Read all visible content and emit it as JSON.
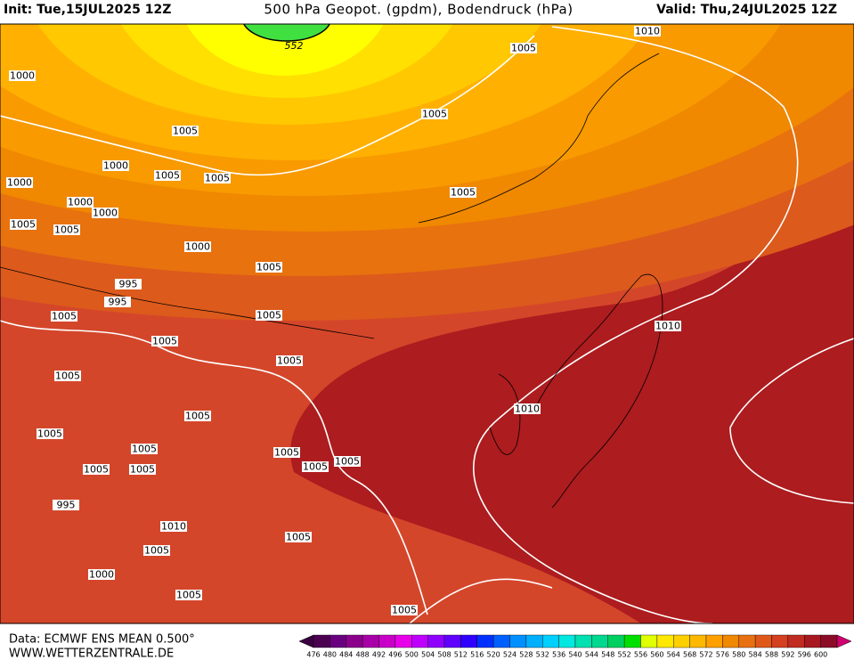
{
  "header": {
    "init": "Init: Tue,15JUL2025 12Z",
    "title": "500 hPa Geopot. (gpdm), Bodendruck (hPa)",
    "valid": "Valid: Thu,24JUL2025 12Z"
  },
  "footer": {
    "source": "Data: ECMWF ENS MEAN 0.500°",
    "website": "WWW.WETTERZENTRALE.DE"
  },
  "contour_label": "552",
  "isobar_labels": [
    "1000",
    "1005",
    "1005",
    "1005",
    "1010",
    "1000",
    "1005",
    "1005",
    "1000",
    "1000",
    "1000",
    "1005",
    "1005",
    "1005",
    "1000",
    "1005",
    "995",
    "995",
    "1005",
    "1005",
    "1010",
    "1005",
    "1005",
    "1005",
    "1010",
    "1005",
    "1005",
    "1005",
    "1005",
    "1005",
    "1005",
    "1005",
    "1005",
    "995",
    "1010",
    "1005",
    "1005",
    "1000",
    "1005",
    "1005"
  ],
  "colorbar": {
    "labels": [
      476,
      480,
      484,
      488,
      492,
      496,
      500,
      504,
      508,
      512,
      516,
      520,
      524,
      528,
      532,
      536,
      540,
      544,
      548,
      552,
      556,
      560,
      564,
      568,
      572,
      576,
      580,
      584,
      588,
      592,
      596,
      600
    ]
  }
}
